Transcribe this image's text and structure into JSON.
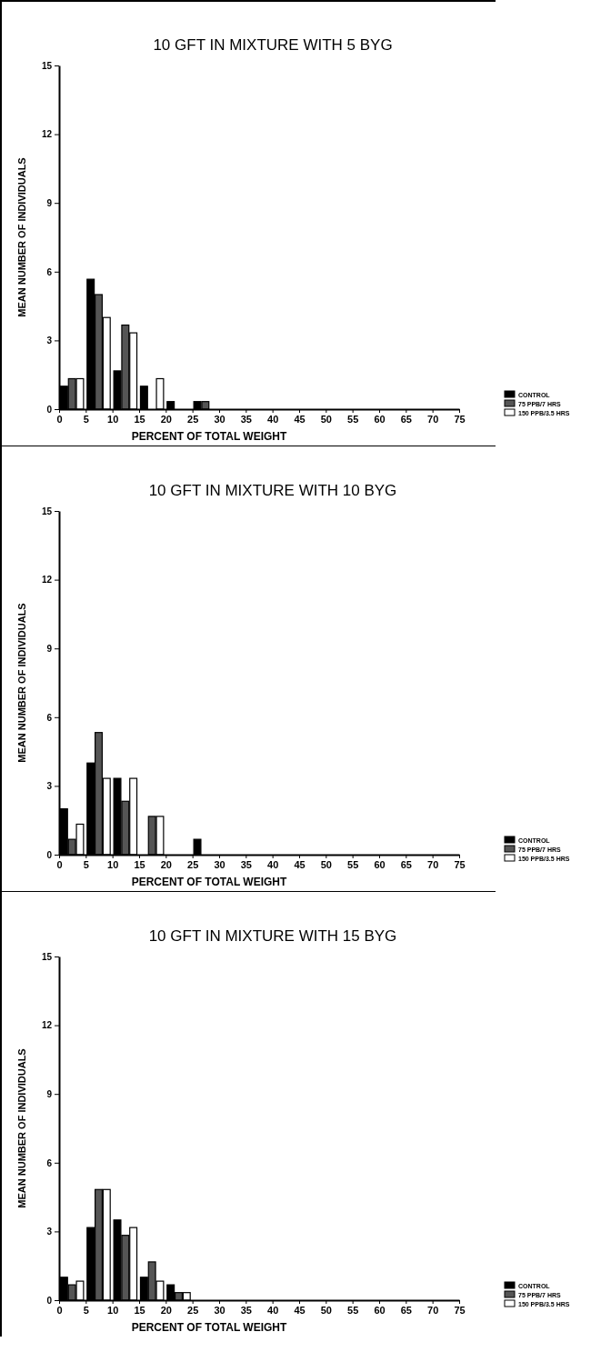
{
  "chart_data": [
    {
      "type": "bar",
      "title": "10 GFT IN MIXTURE WITH 5 BYG",
      "xlabel": "PERCENT OF TOTAL WEIGHT",
      "ylabel": "MEAN NUMBER OF INDIVIDUALS",
      "x": [
        2.5,
        7.5,
        12.5,
        17.5,
        22.5,
        27.5
      ],
      "xlim": [
        0,
        75
      ],
      "xticks": [
        0,
        5,
        10,
        15,
        20,
        25,
        30,
        35,
        40,
        45,
        50,
        55,
        60,
        65,
        70,
        75
      ],
      "ylim": [
        0,
        15
      ],
      "yticks": [
        0,
        3,
        6,
        9,
        12,
        15
      ],
      "legend": "bottom right",
      "series": [
        {
          "name": "CONTROL",
          "color": "#000000",
          "values": [
            1.0,
            5.67,
            1.67,
            1.0,
            0.33,
            0.33
          ]
        },
        {
          "name": "75 PPB/7 HRS",
          "color": "#555555",
          "values": [
            1.33,
            5.0,
            3.67,
            0,
            0,
            0.33
          ]
        },
        {
          "name": "150 PPB/3.5 HRS",
          "color": "#ffffff",
          "values": [
            1.33,
            4.0,
            3.33,
            1.33,
            0,
            0
          ]
        }
      ]
    },
    {
      "type": "bar",
      "title": "10 GFT IN MIXTURE WITH 10 BYG",
      "xlabel": "PERCENT OF TOTAL WEIGHT",
      "ylabel": "MEAN NUMBER OF INDIVIDUALS",
      "x": [
        2.5,
        7.5,
        12.5,
        17.5,
        22.5,
        27.5
      ],
      "xlim": [
        0,
        75
      ],
      "xticks": [
        0,
        5,
        10,
        15,
        20,
        25,
        30,
        35,
        40,
        45,
        50,
        55,
        60,
        65,
        70,
        75
      ],
      "ylim": [
        0,
        15
      ],
      "yticks": [
        0,
        3,
        6,
        9,
        12,
        15
      ],
      "legend": "bottom right",
      "series": [
        {
          "name": "CONTROL",
          "color": "#000000",
          "values": [
            2.0,
            4.0,
            3.33,
            0,
            0,
            0.67
          ]
        },
        {
          "name": "75 PPB/7 HRS",
          "color": "#555555",
          "values": [
            0.67,
            5.33,
            2.33,
            1.67,
            0,
            0
          ]
        },
        {
          "name": "150 PPB/3.5 HRS",
          "color": "#ffffff",
          "values": [
            1.33,
            3.33,
            3.33,
            1.67,
            0,
            0
          ]
        }
      ]
    },
    {
      "type": "bar",
      "title": "10 GFT IN MIXTURE WITH 15 BYG",
      "xlabel": "PERCENT OF TOTAL WEIGHT",
      "ylabel": "MEAN NUMBER OF INDIVIDUALS",
      "x": [
        2.5,
        7.5,
        12.5,
        17.5,
        22.5,
        27.5
      ],
      "xlim": [
        0,
        75
      ],
      "xticks": [
        0,
        5,
        10,
        15,
        20,
        25,
        30,
        35,
        40,
        45,
        50,
        55,
        60,
        65,
        70,
        75
      ],
      "ylim": [
        0,
        15
      ],
      "yticks": [
        0,
        3,
        6,
        9,
        12,
        15
      ],
      "legend": "bottom right",
      "series": [
        {
          "name": "CONTROL",
          "color": "#000000",
          "values": [
            1.0,
            3.17,
            3.5,
            1.0,
            0.67,
            0
          ]
        },
        {
          "name": "75 PPB/7 HRS",
          "color": "#555555",
          "values": [
            0.67,
            4.83,
            2.83,
            1.67,
            0.33,
            0
          ]
        },
        {
          "name": "150 PPB/3.5 HRS",
          "color": "#ffffff",
          "values": [
            0.83,
            4.83,
            3.17,
            0.83,
            0.33,
            0
          ]
        }
      ]
    }
  ]
}
